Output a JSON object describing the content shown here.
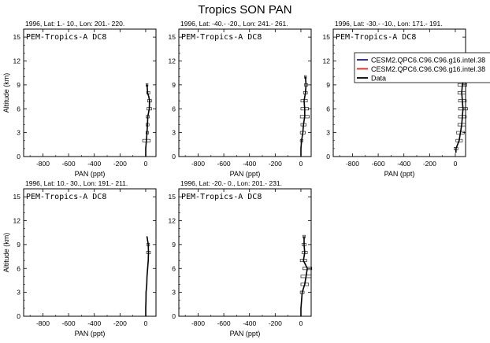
{
  "figure_title": "Tropics SON PAN",
  "legend": {
    "entries": [
      {
        "label": "CESM2.QPC6.C96.C96.g16.intel.38",
        "color": "#1c1c9c"
      },
      {
        "label": "CESM2.QPC6.C96.C96.g16.intel.38",
        "color": "#e0231c"
      },
      {
        "label": "Data",
        "color": "#000000"
      }
    ]
  },
  "chart_data": [
    {
      "type": "line",
      "subtitle": "1996, Lat: 1.- 10., Lon: 201.- 220.",
      "annotation": "PEM-Tropics-A DC8",
      "xlabel": "PAN (ppt)",
      "ylabel": "Altitude (km)",
      "xlim": [
        -950,
        80
      ],
      "ylim": [
        0,
        16
      ],
      "xticks": [
        -800,
        -600,
        -400,
        -200,
        0
      ],
      "yticks": [
        0,
        3,
        6,
        9,
        12,
        15
      ],
      "series": [
        {
          "points": [
            [
              0,
              0
            ],
            [
              0,
              1
            ],
            [
              5,
              2
            ],
            [
              10,
              3
            ],
            [
              14,
              4
            ],
            [
              16,
              5
            ],
            [
              28,
              6
            ],
            [
              30,
              7
            ],
            [
              24,
              7.5
            ],
            [
              15,
              8
            ],
            [
              10,
              9
            ]
          ],
          "bars": [
            [
              2,
              6,
              30
            ],
            [
              3,
              12,
              10
            ],
            [
              4,
              14,
              12
            ],
            [
              5,
              16,
              12
            ],
            [
              6,
              28,
              18
            ],
            [
              7,
              30,
              15
            ],
            [
              8,
              20,
              12
            ],
            [
              9,
              10,
              8
            ]
          ]
        }
      ]
    },
    {
      "type": "line",
      "subtitle": "1996, Lat: -40.- -20., Lon: 241.- 261.",
      "annotation": "PEM-Tropics-A DC8",
      "xlabel": "PAN (ppt)",
      "ylabel": "",
      "xlim": [
        -950,
        80
      ],
      "ylim": [
        0,
        16
      ],
      "xticks": [
        -800,
        -600,
        -400,
        -200,
        0
      ],
      "yticks": [
        0,
        3,
        6,
        9,
        12,
        15
      ],
      "series": [
        {
          "points": [
            [
              0,
              0
            ],
            [
              0,
              1
            ],
            [
              5,
              2
            ],
            [
              15,
              3
            ],
            [
              20,
              4
            ],
            [
              30,
              5
            ],
            [
              30,
              6
            ],
            [
              25,
              7
            ],
            [
              35,
              8
            ],
            [
              40,
              9
            ],
            [
              35,
              10
            ]
          ],
          "bars": [
            [
              2,
              5,
              10
            ],
            [
              3,
              15,
              20
            ],
            [
              4,
              20,
              20
            ],
            [
              5,
              30,
              35
            ],
            [
              6,
              30,
              30
            ],
            [
              7,
              25,
              25
            ],
            [
              8,
              35,
              15
            ],
            [
              9,
              40,
              12
            ],
            [
              10,
              35,
              8
            ]
          ]
        }
      ]
    },
    {
      "type": "line",
      "subtitle": "1996, Lat: -30.- -10., Lon: 171.- 191.",
      "annotation": "PEM-Tropics-A DC8",
      "xlabel": "PAN (ppt)",
      "ylabel": "",
      "xlim": [
        -950,
        80
      ],
      "ylim": [
        0,
        16
      ],
      "xticks": [
        -800,
        -600,
        -400,
        -200,
        0
      ],
      "yticks": [
        0,
        3,
        6,
        9,
        12,
        15
      ],
      "series": [
        {
          "points": [
            [
              5,
              0.5
            ],
            [
              5,
              1
            ],
            [
              30,
              2
            ],
            [
              40,
              3
            ],
            [
              50,
              4
            ],
            [
              55,
              5
            ],
            [
              60,
              6
            ],
            [
              55,
              7
            ],
            [
              50,
              8
            ],
            [
              55,
              9
            ],
            [
              70,
              10
            ]
          ],
          "bars": [
            [
              1,
              5,
              15
            ],
            [
              2,
              30,
              25
            ],
            [
              3,
              40,
              30
            ],
            [
              4,
              50,
              30
            ],
            [
              5,
              55,
              30
            ],
            [
              6,
              60,
              35
            ],
            [
              7,
              55,
              30
            ],
            [
              8,
              50,
              30
            ],
            [
              9,
              55,
              35
            ],
            [
              10,
              70,
              30
            ]
          ]
        }
      ]
    },
    {
      "type": "line",
      "subtitle": "1996, Lat: 10.- 30., Lon: 191.- 211.",
      "annotation": "PEM-Tropics-A DC8",
      "xlabel": "PAN (ppt)",
      "ylabel": "Altitude (km)",
      "xlim": [
        -950,
        80
      ],
      "ylim": [
        0,
        16
      ],
      "xticks": [
        -800,
        -600,
        -400,
        -200,
        0
      ],
      "yticks": [
        0,
        3,
        6,
        9,
        12,
        15
      ],
      "series": [
        {
          "points": [
            [
              0,
              0
            ],
            [
              0,
              1
            ],
            [
              2,
              2
            ],
            [
              3,
              3
            ],
            [
              8,
              4
            ],
            [
              10,
              5
            ],
            [
              15,
              6
            ],
            [
              20,
              7
            ],
            [
              22,
              8
            ],
            [
              20,
              9
            ],
            [
              10,
              10
            ]
          ],
          "bars": [
            [
              8,
              22,
              15
            ],
            [
              9,
              20,
              10
            ]
          ]
        }
      ]
    },
    {
      "type": "line",
      "subtitle": "1996, Lat: -20.- 0., Lon: 201.- 231.",
      "annotation": "PEM-Tropics-A DC8",
      "xlabel": "PAN (ppt)",
      "ylabel": "",
      "xlim": [
        -950,
        80
      ],
      "ylim": [
        0,
        16
      ],
      "xticks": [
        -800,
        -600,
        -400,
        -200,
        0
      ],
      "yticks": [
        0,
        3,
        6,
        9,
        12,
        15
      ],
      "series": [
        {
          "points": [
            [
              0,
              0
            ],
            [
              0,
              1
            ],
            [
              5,
              2
            ],
            [
              10,
              3
            ],
            [
              30,
              4
            ],
            [
              40,
              5
            ],
            [
              50,
              6
            ],
            [
              20,
              7
            ],
            [
              30,
              8
            ],
            [
              25,
              9
            ],
            [
              25,
              10
            ]
          ],
          "bars": [
            [
              3,
              10,
              15
            ],
            [
              4,
              30,
              30
            ],
            [
              5,
              40,
              40
            ],
            [
              6,
              50,
              35
            ],
            [
              7,
              20,
              25
            ],
            [
              8,
              30,
              20
            ],
            [
              9,
              25,
              15
            ],
            [
              10,
              25,
              10
            ]
          ]
        }
      ]
    }
  ]
}
